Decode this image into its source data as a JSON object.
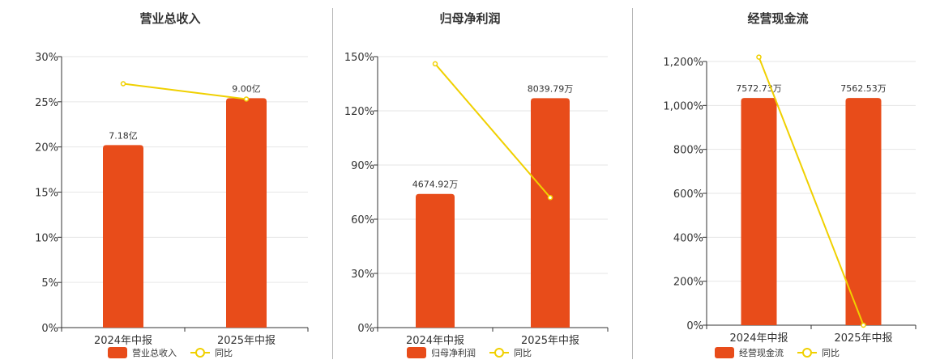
{
  "colors": {
    "bar": "#e84c1a",
    "line": "#f0d000",
    "axis": "#333333",
    "grid": "#e6e6e6"
  },
  "chart_data": [
    {
      "type": "bar",
      "title": "营业总收入",
      "categories": [
        "2024年中报",
        "2025年中报"
      ],
      "ylim": [
        0,
        30
      ],
      "yticks": [
        "0%",
        "5%",
        "10%",
        "15%",
        "20%",
        "25%",
        "30%"
      ],
      "series": [
        {
          "name": "营业总收入",
          "type": "bar",
          "values": [
            20.2,
            25.4
          ],
          "labels": [
            "7.18亿",
            "9.00亿"
          ]
        },
        {
          "name": "同比",
          "type": "line",
          "values": [
            27.0,
            25.3
          ]
        }
      ],
      "legend": "bottom",
      "grid": true
    },
    {
      "type": "bar",
      "title": "归母净利润",
      "categories": [
        "2024年中报",
        "2025年中报"
      ],
      "ylim": [
        0,
        150
      ],
      "yticks": [
        "0%",
        "30%",
        "60%",
        "90%",
        "120%",
        "150%"
      ],
      "series": [
        {
          "name": "归母净利润",
          "type": "bar",
          "values": [
            74.0,
            127.0
          ],
          "labels": [
            "4674.92万",
            "8039.79万"
          ]
        },
        {
          "name": "同比",
          "type": "line",
          "values": [
            146.0,
            72.0
          ]
        }
      ],
      "legend": "bottom",
      "grid": true
    },
    {
      "type": "bar",
      "title": "经营现金流",
      "categories": [
        "2024年中报",
        "2025年中报"
      ],
      "ylim": [
        0,
        1200
      ],
      "yticks": [
        "0%",
        "200%",
        "400%",
        "600%",
        "800%",
        "1,000%",
        "1,200%"
      ],
      "series": [
        {
          "name": "经营现金流",
          "type": "bar",
          "values": [
            1034,
            1034
          ],
          "labels": [
            "7572.73万",
            "7562.53万"
          ]
        },
        {
          "name": "同比",
          "type": "line",
          "values": [
            1220,
            0
          ]
        }
      ],
      "legend": "bottom",
      "grid": true
    }
  ]
}
